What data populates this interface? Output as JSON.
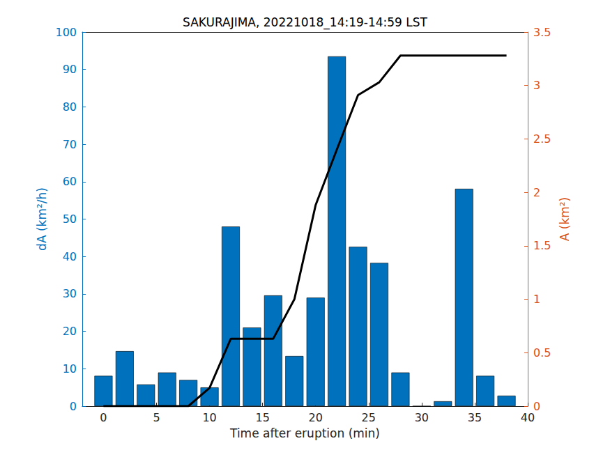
{
  "chart_data": {
    "type": "bar",
    "title": "SAKURAJIMA, 20221018_14:19-14:59 LST",
    "x_label": "Time after eruption (min)",
    "y_label": "dA (km²/h)",
    "y2_label": "A (km²)",
    "x": [
      0,
      2,
      4,
      6,
      8,
      10,
      12,
      14,
      16,
      18,
      20,
      22,
      24,
      26,
      28,
      30,
      32,
      34,
      36,
      38
    ],
    "series": [
      {
        "type": "bar",
        "color": "#0072BD",
        "values": [
          8.1,
          14.7,
          5.8,
          9.0,
          7.0,
          5.0,
          48.0,
          21.0,
          29.6,
          13.4,
          29.0,
          93.5,
          42.6,
          38.3,
          9.0,
          0,
          1.3,
          58.1,
          8.1,
          2.8
        ]
      },
      {
        "type": "line",
        "axis": "y2",
        "color": "#000000",
        "values": [
          0,
          0,
          0,
          0,
          0,
          0.17,
          0.63,
          0.63,
          0.63,
          1.0,
          1.88,
          2.4,
          2.91,
          3.03,
          3.28,
          3.28,
          3.28,
          3.28,
          3.28,
          3.28
        ]
      }
    ],
    "xlim": [
      -2,
      40
    ],
    "xticks": [
      0,
      5,
      10,
      15,
      20,
      25,
      30,
      35,
      40
    ],
    "ylim": [
      0,
      100
    ],
    "yticks": [
      0,
      10,
      20,
      30,
      40,
      50,
      60,
      70,
      80,
      90,
      100
    ],
    "y2lim": [
      0,
      3.5
    ],
    "y2ticks": [
      0,
      0.5,
      1,
      1.5,
      2,
      2.5,
      3,
      3.5
    ],
    "y2_color": "#D95319",
    "grid": false
  }
}
